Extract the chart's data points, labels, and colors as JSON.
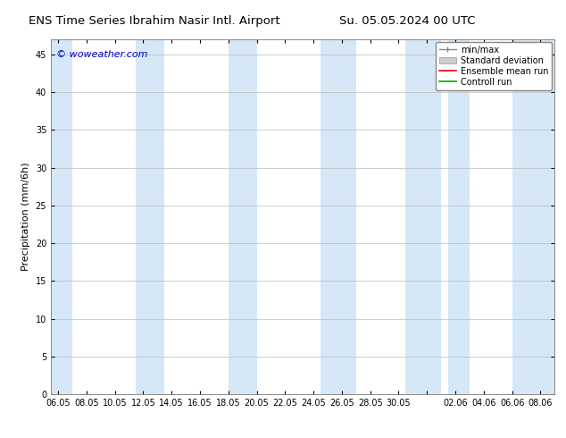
{
  "title_left": "ENS Time Series Ibrahim Nasir Intl. Airport",
  "title_right": "Su. 05.05.2024 00 UTC",
  "ylabel": "Precipitation (mm/6h)",
  "watermark": "© woweather.com",
  "background_color": "#ffffff",
  "plot_bg_color": "#ffffff",
  "ylim": [
    0,
    47
  ],
  "yticks": [
    0,
    5,
    10,
    15,
    20,
    25,
    30,
    35,
    40,
    45
  ],
  "xtick_labels": [
    "06.05",
    "08.05",
    "10.05",
    "12.05",
    "14.05",
    "16.05",
    "18.05",
    "20.05",
    "22.05",
    "24.05",
    "26.05",
    "28.05",
    "30.05",
    "",
    "02.06",
    "04.06",
    "06.06",
    "08.06"
  ],
  "xtick_positions": [
    0,
    2,
    4,
    6,
    8,
    10,
    12,
    14,
    16,
    18,
    20,
    22,
    24,
    26,
    28,
    30,
    32,
    34
  ],
  "xlim": [
    -0.5,
    35
  ],
  "shade_bands": [
    [
      -0.5,
      1.0
    ],
    [
      5.5,
      7.5
    ],
    [
      12.0,
      14.0
    ],
    [
      18.5,
      21.0
    ],
    [
      24.5,
      27.0
    ],
    [
      27.5,
      29.0
    ],
    [
      32.0,
      35.0
    ]
  ],
  "shade_color": "#d6e8f7",
  "legend_items": [
    {
      "label": "min/max",
      "type": "errorbar",
      "color": "#888888"
    },
    {
      "label": "Standard deviation",
      "type": "fillbetween",
      "color": "#cccccc"
    },
    {
      "label": "Ensemble mean run",
      "type": "line",
      "color": "#ff0000"
    },
    {
      "label": "Controll run",
      "type": "line",
      "color": "#00aa00"
    }
  ],
  "font_family": "DejaVu Sans",
  "title_fontsize": 9.5,
  "watermark_color": "#0000cc",
  "watermark_fontsize": 8,
  "axis_label_fontsize": 8,
  "tick_fontsize": 7,
  "legend_fontsize": 7
}
